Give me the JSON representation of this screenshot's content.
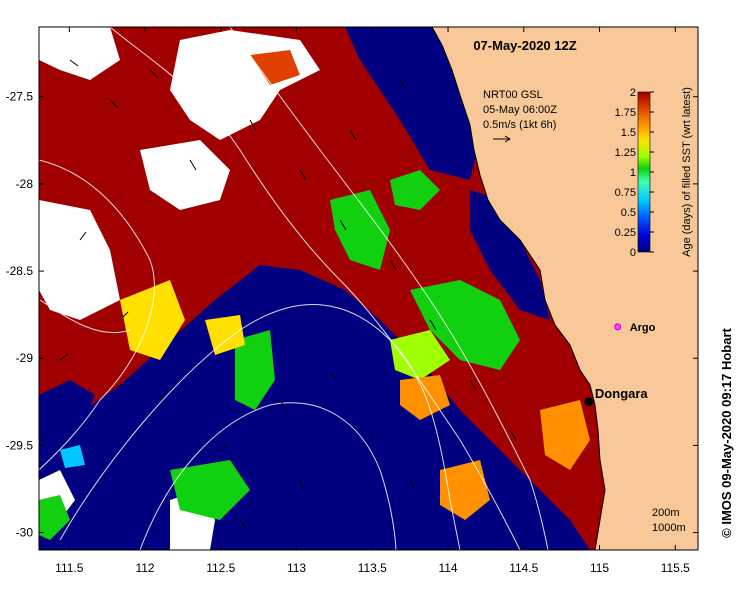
{
  "map": {
    "title": "07-May-2020 12Z",
    "x_ticks": [
      "111.5",
      "112",
      "112.5",
      "113",
      "113.5",
      "114",
      "114.5",
      "115",
      "115.5"
    ],
    "y_ticks": [
      "-27.5",
      "-28",
      "-28.5",
      "-29",
      "-29.5",
      "-30"
    ],
    "x_tick_values": [
      111.5,
      112,
      112.5,
      113,
      113.5,
      114,
      114.5,
      115,
      115.5
    ],
    "y_tick_values": [
      -27.5,
      -28,
      -28.5,
      -29,
      -29.5,
      -30
    ],
    "lon_range": [
      111.3,
      115.65
    ],
    "lat_range": [
      -30.1,
      -27.1
    ],
    "credit": "© IMOS 09-May-2020 09:17 Hobart"
  },
  "current_legend": {
    "line1": "NRT00 GSL",
    "line2": "05-May 06:00Z",
    "line3": "0.5m/s (1kt 6h)"
  },
  "colorbar": {
    "label": "Age (days) of filled SST (wrt latest)",
    "ticks": [
      "2",
      "1.75",
      "1.5",
      "1.25",
      "1",
      "0.75",
      "0.5",
      "0.25",
      "0"
    ],
    "tick_values": [
      2,
      1.75,
      1.5,
      1.25,
      1,
      0.75,
      0.5,
      0.25,
      0
    ],
    "colors": [
      "#000080",
      "#0000d0",
      "#0060ff",
      "#00c8ff",
      "#40ffb0",
      "#10d010",
      "#a0ff00",
      "#ffe000",
      "#ff9000",
      "#e04000",
      "#a00000"
    ]
  },
  "places": {
    "argo": "Argo",
    "argo_lon": 115.12,
    "argo_lat": -28.82,
    "dongara": "Dongara",
    "dongara_lon": 114.93,
    "dongara_lat": -29.25
  },
  "depth_legend": {
    "line1": "200m",
    "line2": "1000m"
  },
  "colors": {
    "land": "#f9c898",
    "deep_blue": "#000080",
    "dark_red": "#a00000",
    "no_data": "#ffffff",
    "argo_marker": "#ff40ff"
  }
}
